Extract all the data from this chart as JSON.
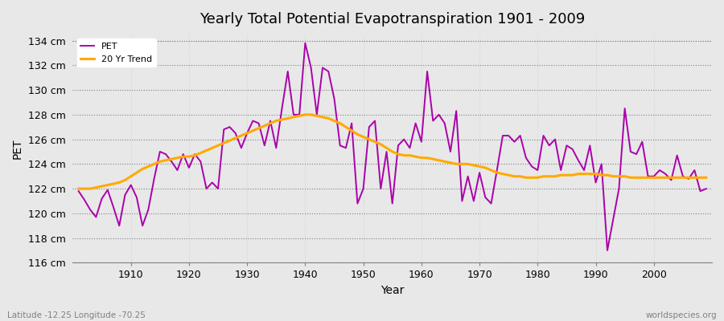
{
  "title": "Yearly Total Potential Evapotranspiration 1901 - 2009",
  "xlabel": "Year",
  "ylabel": "PET",
  "subtitle_left": "Latitude -12.25 Longitude -70.25",
  "subtitle_right": "worldspecies.org",
  "ylim": [
    116,
    134.5
  ],
  "yticks": [
    116,
    118,
    120,
    122,
    124,
    126,
    128,
    130,
    132,
    134
  ],
  "ytick_labels": [
    "116 cm",
    "118 cm",
    "120 cm",
    "122 cm",
    "124 cm",
    "126 cm",
    "128 cm",
    "130 cm",
    "132 cm",
    "134 cm"
  ],
  "xlim": [
    1900,
    2010
  ],
  "xticks": [
    1910,
    1920,
    1930,
    1940,
    1950,
    1960,
    1970,
    1980,
    1990,
    2000
  ],
  "bg_color": "#e8e8e8",
  "plot_bg_color": "#e8e8e8",
  "pet_color": "#aa00aa",
  "trend_color": "#ffaa00",
  "pet_linewidth": 1.4,
  "trend_linewidth": 2.2,
  "years": [
    1901,
    1902,
    1903,
    1904,
    1905,
    1906,
    1907,
    1908,
    1909,
    1910,
    1911,
    1912,
    1913,
    1914,
    1915,
    1916,
    1917,
    1918,
    1919,
    1920,
    1921,
    1922,
    1923,
    1924,
    1925,
    1926,
    1927,
    1928,
    1929,
    1930,
    1931,
    1932,
    1933,
    1934,
    1935,
    1936,
    1937,
    1938,
    1939,
    1940,
    1941,
    1942,
    1943,
    1944,
    1945,
    1946,
    1947,
    1948,
    1949,
    1950,
    1951,
    1952,
    1953,
    1954,
    1955,
    1956,
    1957,
    1958,
    1959,
    1960,
    1961,
    1962,
    1963,
    1964,
    1965,
    1966,
    1967,
    1968,
    1969,
    1970,
    1971,
    1972,
    1973,
    1974,
    1975,
    1976,
    1977,
    1978,
    1979,
    1980,
    1981,
    1982,
    1983,
    1984,
    1985,
    1986,
    1987,
    1988,
    1989,
    1990,
    1991,
    1992,
    1993,
    1994,
    1995,
    1996,
    1997,
    1998,
    1999,
    2000,
    2001,
    2002,
    2003,
    2004,
    2005,
    2006,
    2007,
    2008,
    2009
  ],
  "pet_values": [
    121.8,
    121.1,
    120.3,
    119.7,
    121.2,
    121.9,
    120.5,
    119.0,
    121.5,
    122.3,
    121.3,
    119.0,
    120.3,
    122.8,
    125.0,
    124.8,
    124.2,
    123.5,
    124.8,
    123.7,
    124.8,
    124.2,
    122.0,
    122.5,
    122.0,
    126.8,
    127.0,
    126.5,
    125.3,
    126.5,
    127.5,
    127.3,
    125.5,
    127.5,
    125.3,
    128.5,
    131.5,
    128.0,
    128.0,
    133.8,
    131.8,
    128.0,
    131.8,
    131.5,
    129.3,
    125.5,
    125.3,
    127.3,
    120.8,
    122.0,
    127.0,
    127.5,
    122.0,
    125.0,
    120.8,
    125.5,
    126.0,
    125.3,
    127.3,
    125.8,
    131.5,
    127.5,
    128.0,
    127.3,
    125.0,
    128.3,
    121.0,
    123.0,
    121.0,
    123.3,
    121.3,
    120.8,
    123.5,
    126.3,
    126.3,
    125.8,
    126.3,
    124.5,
    123.8,
    123.5,
    126.3,
    125.5,
    126.0,
    123.5,
    125.5,
    125.2,
    124.3,
    123.5,
    125.5,
    122.5,
    124.0,
    117.0,
    119.5,
    122.0,
    128.5,
    125.0,
    124.8,
    125.8,
    123.0,
    123.0,
    123.5,
    123.2,
    122.7,
    124.7,
    123.0,
    122.8,
    123.5,
    121.8,
    122.0
  ],
  "trend_values": [
    122.0,
    122.0,
    122.0,
    122.1,
    122.2,
    122.3,
    122.4,
    122.5,
    122.7,
    123.0,
    123.3,
    123.6,
    123.8,
    124.0,
    124.2,
    124.3,
    124.4,
    124.5,
    124.6,
    124.6,
    124.7,
    124.9,
    125.1,
    125.3,
    125.5,
    125.7,
    125.9,
    126.1,
    126.3,
    126.5,
    126.7,
    126.9,
    127.1,
    127.3,
    127.5,
    127.6,
    127.7,
    127.8,
    127.9,
    128.0,
    128.0,
    127.9,
    127.8,
    127.7,
    127.5,
    127.3,
    127.0,
    126.7,
    126.4,
    126.2,
    126.0,
    125.8,
    125.6,
    125.3,
    125.0,
    124.8,
    124.7,
    124.7,
    124.6,
    124.5,
    124.5,
    124.4,
    124.3,
    124.2,
    124.1,
    124.0,
    124.0,
    124.0,
    123.9,
    123.8,
    123.7,
    123.5,
    123.3,
    123.2,
    123.1,
    123.0,
    123.0,
    122.9,
    122.9,
    122.9,
    123.0,
    123.0,
    123.0,
    123.1,
    123.1,
    123.1,
    123.2,
    123.2,
    123.2,
    123.2,
    123.1,
    123.1,
    123.0,
    123.0,
    123.0,
    122.9,
    122.9,
    122.9,
    122.9,
    122.9,
    122.9,
    122.9,
    122.9,
    122.9,
    122.9,
    122.9,
    122.9,
    122.9,
    122.9
  ]
}
